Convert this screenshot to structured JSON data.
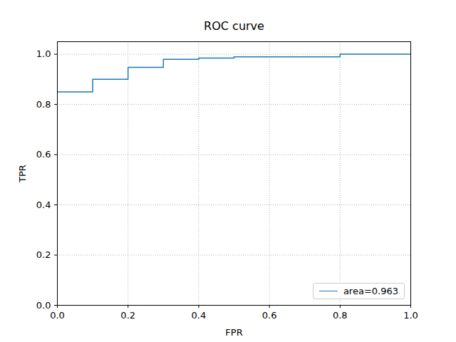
{
  "chart_data": {
    "type": "line",
    "title": "ROC curve",
    "x_label": "FPR",
    "y_label": "TPR",
    "x": [
      0,
      0.1,
      0.2,
      0.3,
      0.4,
      0.5,
      0.8,
      1.0
    ],
    "series": [
      {
        "name": "area=0.963",
        "color": "#1f77b4",
        "line_style": "steps",
        "values": [
          0.85,
          0.9,
          0.948,
          0.98,
          0.985,
          0.99,
          1.0,
          1.0
        ]
      }
    ],
    "xlim": [
      0,
      1
    ],
    "ylim": [
      0,
      1.05
    ],
    "xticks": [
      {
        "value": 0,
        "label": "0.0"
      },
      0.2,
      0.4,
      0.6,
      0.8,
      {
        "value": 1,
        "label": "1.0"
      }
    ],
    "yticks": [
      {
        "value": 0,
        "label": "0.0"
      },
      0.2,
      0.4,
      0.6,
      0.8,
      {
        "value": 1,
        "label": "1.0"
      }
    ],
    "grid": true,
    "legend": "lower right"
  }
}
